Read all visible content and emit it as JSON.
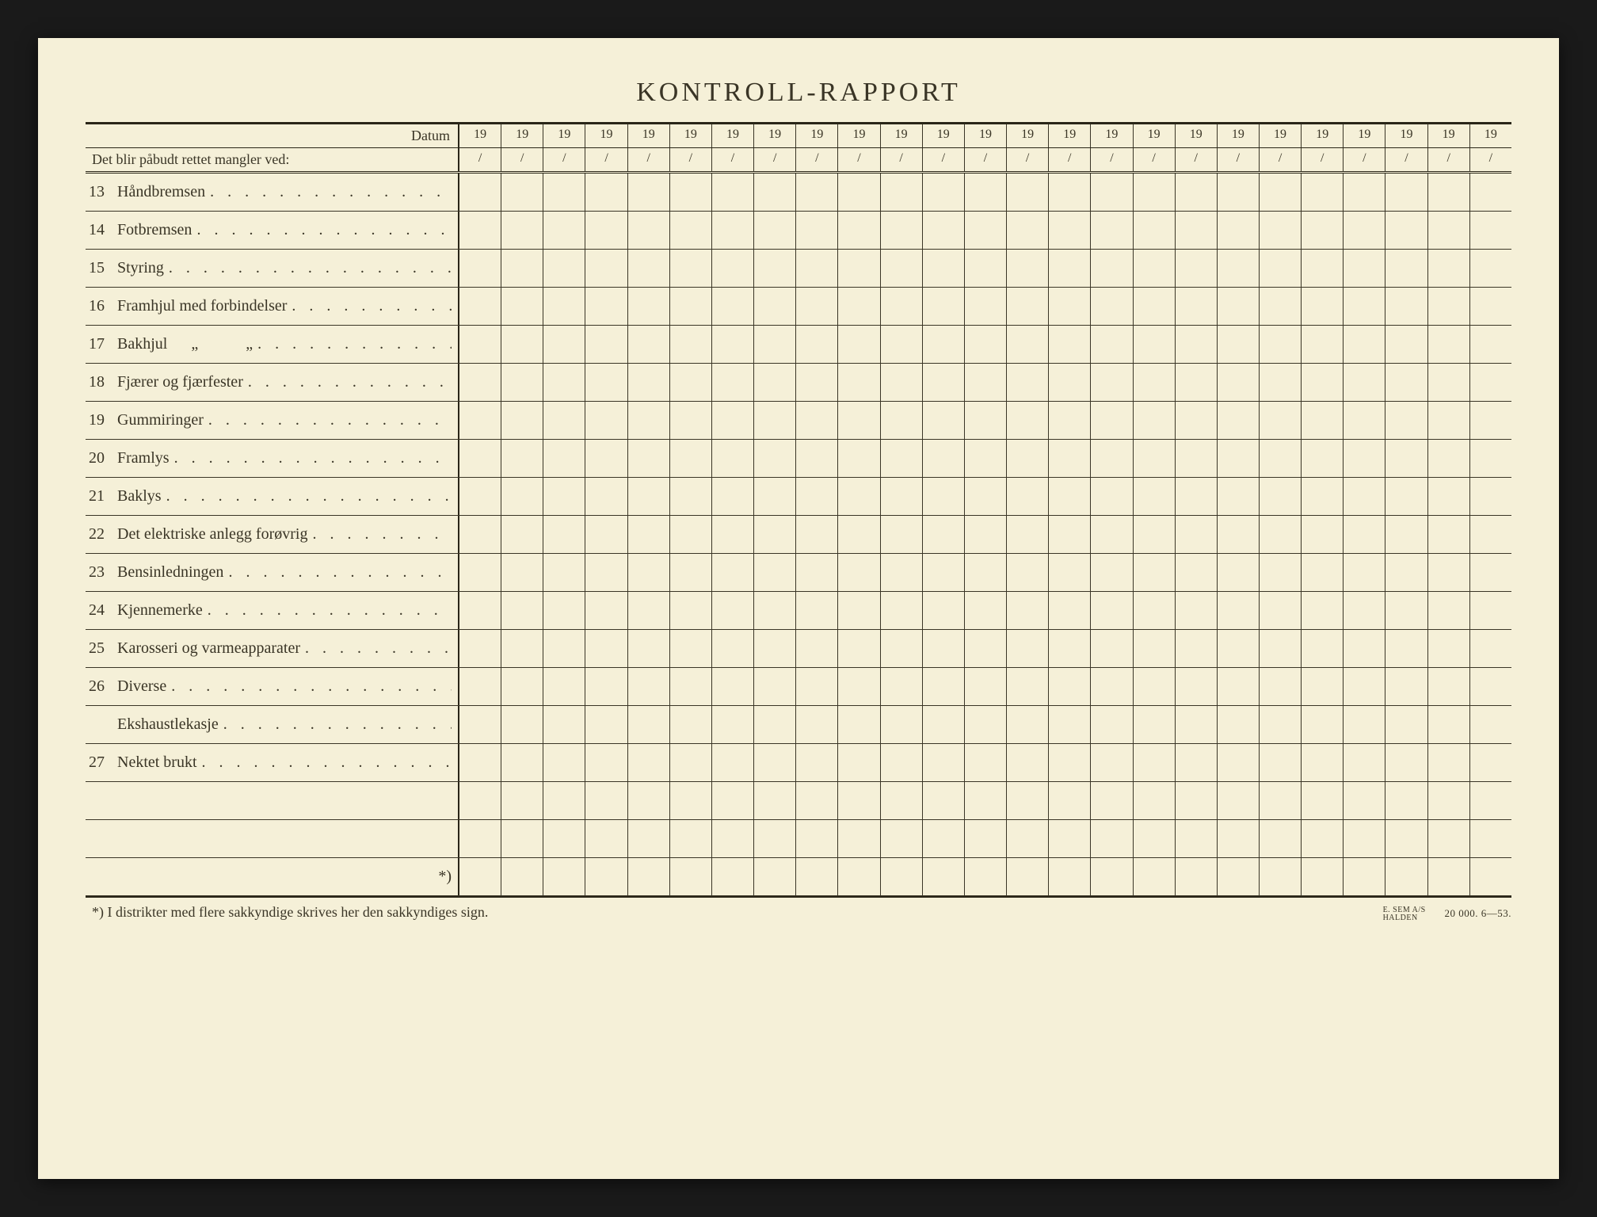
{
  "title": "KONTROLL-RAPPORT",
  "header": {
    "datum_label": "Datum",
    "subheader": "Det blir påbudt rettet mangler ved:",
    "year_prefix": "19",
    "slash": "/",
    "num_columns": 25
  },
  "rows": [
    {
      "num": "13",
      "label": "Håndbremsen",
      "dots": true
    },
    {
      "num": "14",
      "label": "Fotbremsen",
      "dots": true
    },
    {
      "num": "15",
      "label": "Styring",
      "dots": true
    },
    {
      "num": "16",
      "label": "Framhjul med forbindelser",
      "dots": true
    },
    {
      "num": "17",
      "label": "Bakhjul",
      "ditto": true,
      "dots": true
    },
    {
      "num": "18",
      "label": "Fjærer og fjærfester",
      "dots": true
    },
    {
      "num": "19",
      "label": "Gummiringer",
      "dots": true
    },
    {
      "num": "20",
      "label": "Framlys",
      "dots": true
    },
    {
      "num": "21",
      "label": "Baklys",
      "dots": true
    },
    {
      "num": "22",
      "label": "Det elektriske anlegg forøvrig",
      "dots": true
    },
    {
      "num": "23",
      "label": "Bensinledningen",
      "dots": true
    },
    {
      "num": "24",
      "label": "Kjennemerke",
      "dots": true
    },
    {
      "num": "25",
      "label": "Karosseri og varmeapparater",
      "dots": true
    },
    {
      "num": "26",
      "label": "Diverse",
      "dots": true
    },
    {
      "num": "",
      "label": "Ekshaustlekasje",
      "dots": true
    },
    {
      "num": "27",
      "label": "Nektet brukt",
      "dots": true
    },
    {
      "num": "",
      "label": "",
      "dots": false
    },
    {
      "num": "",
      "label": "",
      "dots": false
    },
    {
      "num": "",
      "label": "",
      "dots": false,
      "marker": "*)"
    }
  ],
  "footer": {
    "note": "*)  I distrikter med flere sakkyndige skrives her den sakkyndiges sign.",
    "printer_line1": "E. SEM A/S",
    "printer_line2": "HALDEN",
    "print_info": "20 000.   6—53."
  },
  "colors": {
    "paper": "#f5f0d8",
    "ink": "#3a3526",
    "rule": "#2a2618"
  }
}
